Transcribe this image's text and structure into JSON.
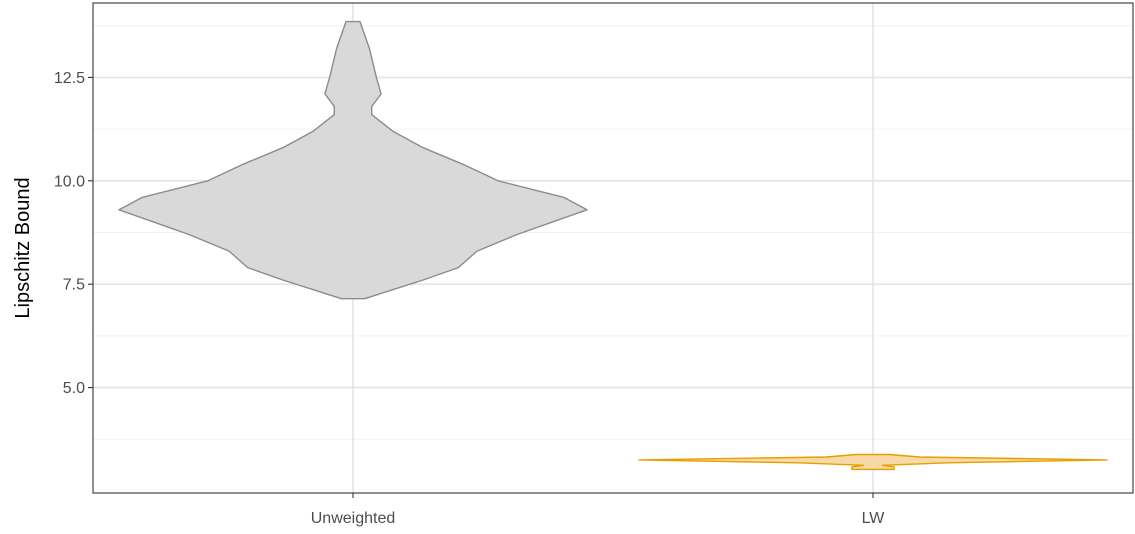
{
  "chart_data": {
    "type": "violin",
    "title": "",
    "xlabel": "",
    "ylabel": "Lipschitz Bound",
    "ylim": [
      2.45,
      14.3
    ],
    "grid": true,
    "legend": "none",
    "categories": [
      "Unweighted",
      "LW"
    ],
    "yticks": [
      {
        "value": 5.0,
        "label": "5.0"
      },
      {
        "value": 7.5,
        "label": "7.5"
      },
      {
        "value": 10.0,
        "label": "10.0"
      },
      {
        "value": 12.5,
        "label": "12.5"
      }
    ],
    "series": [
      {
        "category": "Unweighted",
        "fill": "#d9d9d9",
        "stroke": "#8c8c8c",
        "density": [
          [
            7.15,
            0.05
          ],
          [
            7.35,
            0.16
          ],
          [
            7.6,
            0.3
          ],
          [
            7.9,
            0.45
          ],
          [
            8.3,
            0.53
          ],
          [
            8.7,
            0.7
          ],
          [
            9.0,
            0.85
          ],
          [
            9.3,
            1.0
          ],
          [
            9.6,
            0.9
          ],
          [
            10.0,
            0.62
          ],
          [
            10.4,
            0.47
          ],
          [
            10.8,
            0.3
          ],
          [
            11.2,
            0.17
          ],
          [
            11.6,
            0.08
          ],
          [
            11.8,
            0.08
          ],
          [
            12.1,
            0.12
          ],
          [
            12.5,
            0.1
          ],
          [
            13.2,
            0.07
          ],
          [
            13.85,
            0.03
          ]
        ]
      },
      {
        "category": "LW",
        "fill": "#f5d9a6",
        "stroke": "#e69f00",
        "density": [
          [
            3.02,
            0.09
          ],
          [
            3.08,
            0.09
          ],
          [
            3.12,
            0.04
          ],
          [
            3.18,
            0.32
          ],
          [
            3.25,
            1.0
          ],
          [
            3.32,
            0.2
          ],
          [
            3.38,
            0.07
          ]
        ]
      }
    ]
  }
}
